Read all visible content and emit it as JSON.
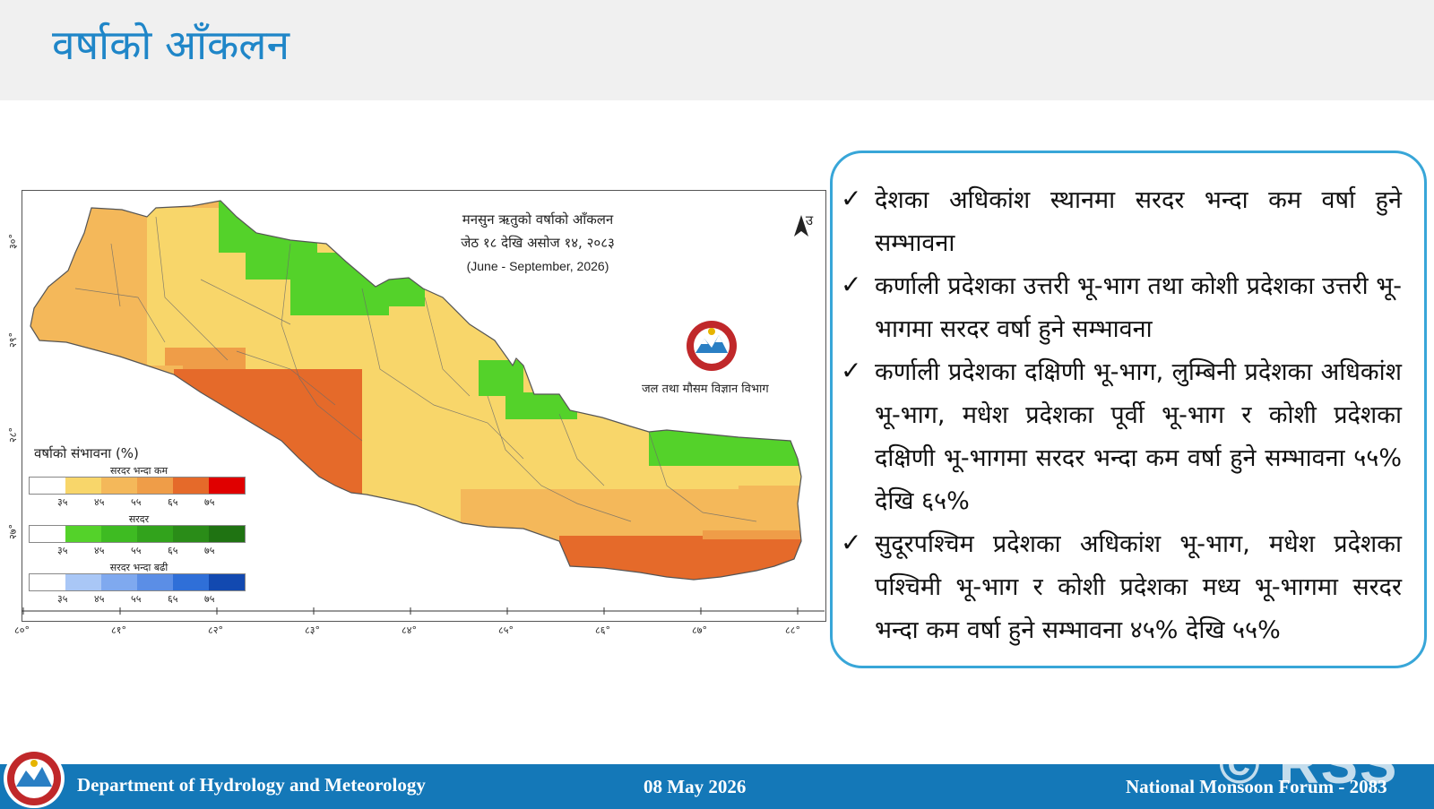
{
  "slide": {
    "title": "वर्षाको आँकलन"
  },
  "map": {
    "title_line1": "मनसुन ऋतुको वर्षाको आँकलन",
    "title_line2": "जेठ १८ देखि असोज १४, २०८३",
    "title_line3": "(June - September, 2026)",
    "north_label": "उ",
    "department_np": "जल तथा मौसम विज्ञान विभाग",
    "x_ticks": [
      "८०°",
      "८१°",
      "८२°",
      "८३°",
      "८४°",
      "८५°",
      "८६°",
      "८७°",
      "८८°"
    ],
    "y_ticks": [
      "३०°",
      "२९°",
      "२८°",
      "२७°"
    ],
    "legend": {
      "title": "वर्षाको संभावना (%)",
      "below_normal": "सरदर भन्दा कम",
      "normal": "सरदर",
      "above_normal": "सरदर भन्दा बढी",
      "ticks": [
        "३५",
        "४५",
        "५५",
        "६५",
        "७५"
      ],
      "colors_below": [
        "#ffffff",
        "#f8d66a",
        "#f4b85a",
        "#ef9d48",
        "#e56a2a",
        "#e43420",
        "#e00000"
      ],
      "colors_normal": [
        "#ffffff",
        "#54d22a",
        "#3ebb22",
        "#32a31c",
        "#2a8c18",
        "#1f7312"
      ],
      "colors_above": [
        "#ffffff",
        "#a9c7f6",
        "#7fa9ef",
        "#5b8ee6",
        "#2f6fd8",
        "#1249b0"
      ]
    }
  },
  "points": [
    "देशका अधिकांश स्थानमा सरदर भन्दा कम वर्षा हुने सम्भावना",
    "कर्णाली प्रदेशका उत्तरी भू-भाग तथा कोशी प्रदेशका उत्तरी भू-भागमा सरदर वर्षा हुने सम्भावना",
    "कर्णाली प्रदेशका दक्षिणी भू-भाग, लुम्बिनी प्रदेशका अधिकांश भू-भाग, मधेश प्रदेशका पूर्वी भू-भाग र कोशी प्रदेशका दक्षिणी भू-भागमा सरदर भन्दा कम वर्षा हुने सम्भावना ५५% देखि ६५%",
    "सुदूरपश्चिम प्रदेशका अधिकांश भू-भाग, मधेश प्रदेशका पश्चिमी भू-भाग र कोशी प्रदेशका मध्य भू-भागमा सरदर भन्दा कम वर्षा हुने सम्भावना ४५% देखि ५५%"
  ],
  "check_symbol": "✓",
  "footer": {
    "department": "Department of Hydrology and Meteorology",
    "date": "08 May 2026",
    "forum": "National Monsoon Forum - 2083"
  },
  "watermark": "© RSS"
}
